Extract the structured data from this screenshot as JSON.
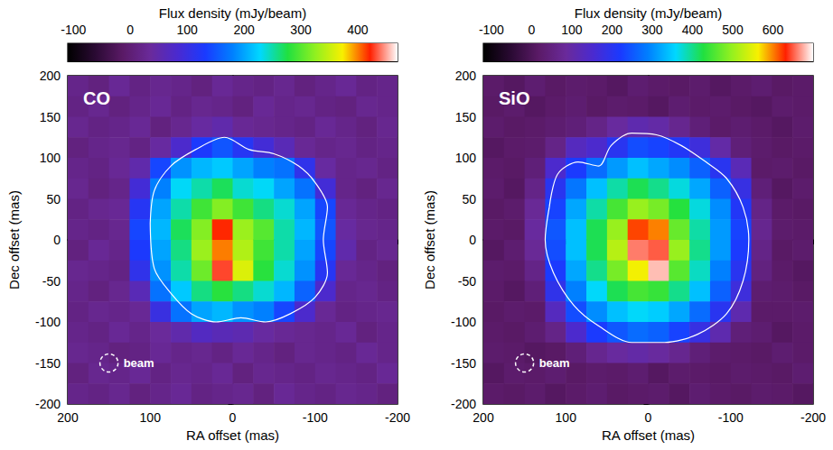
{
  "chart_data": [
    {
      "type": "heatmap",
      "title": "CO",
      "xlabel": "RA offset (mas)",
      "ylabel": "Dec offset (mas)",
      "xlim": [
        200,
        -200
      ],
      "ylim": [
        -200,
        200
      ],
      "xticks": [
        200,
        100,
        0,
        -100,
        -200
      ],
      "yticks": [
        -200,
        -150,
        -100,
        -50,
        0,
        50,
        100,
        150,
        200
      ],
      "grid": false,
      "x": [
        187.5,
        162.5,
        137.5,
        112.5,
        87.5,
        62.5,
        37.5,
        12.5,
        -12.5,
        -37.5,
        -62.5,
        -87.5,
        -112.5,
        -137.5,
        -162.5,
        -187.5
      ],
      "y": [
        187.5,
        162.5,
        137.5,
        112.5,
        87.5,
        62.5,
        37.5,
        12.5,
        -12.5,
        -37.5,
        -62.5,
        -87.5,
        -112.5,
        -137.5,
        -162.5,
        -187.5
      ],
      "values": [
        [
          20,
          10,
          30,
          15,
          25,
          20,
          10,
          30,
          20,
          15,
          25,
          10,
          20,
          30,
          15,
          20
        ],
        [
          15,
          25,
          10,
          20,
          30,
          15,
          25,
          20,
          10,
          30,
          20,
          25,
          15,
          10,
          25,
          20
        ],
        [
          25,
          15,
          20,
          30,
          10,
          25,
          40,
          50,
          30,
          25,
          20,
          15,
          30,
          20,
          10,
          25
        ],
        [
          10,
          20,
          25,
          15,
          40,
          80,
          130,
          150,
          120,
          90,
          60,
          30,
          20,
          25,
          15,
          20
        ],
        [
          20,
          15,
          30,
          50,
          140,
          190,
          210,
          220,
          200,
          180,
          170,
          110,
          40,
          20,
          25,
          15
        ],
        [
          25,
          10,
          20,
          90,
          180,
          230,
          250,
          270,
          240,
          230,
          200,
          170,
          90,
          20,
          10,
          25
        ],
        [
          15,
          25,
          30,
          120,
          200,
          250,
          290,
          320,
          290,
          260,
          240,
          200,
          140,
          30,
          20,
          15
        ],
        [
          20,
          15,
          25,
          140,
          210,
          270,
          320,
          420,
          330,
          300,
          250,
          210,
          150,
          40,
          25,
          20
        ],
        [
          10,
          30,
          20,
          130,
          200,
          260,
          330,
          400,
          340,
          290,
          250,
          200,
          140,
          50,
          15,
          25
        ],
        [
          25,
          20,
          15,
          110,
          190,
          250,
          310,
          430,
          360,
          280,
          240,
          190,
          120,
          30,
          20,
          10
        ],
        [
          20,
          10,
          25,
          60,
          170,
          220,
          260,
          280,
          260,
          240,
          210,
          160,
          80,
          20,
          25,
          15
        ],
        [
          15,
          25,
          20,
          30,
          100,
          170,
          200,
          210,
          190,
          180,
          140,
          80,
          30,
          15,
          20,
          25
        ],
        [
          20,
          15,
          30,
          20,
          35,
          50,
          70,
          60,
          55,
          40,
          30,
          25,
          20,
          30,
          10,
          20
        ],
        [
          25,
          20,
          10,
          15,
          30,
          20,
          25,
          15,
          30,
          20,
          10,
          25,
          20,
          15,
          30,
          20
        ],
        [
          10,
          25,
          20,
          30,
          15,
          25,
          20,
          30,
          10,
          25,
          20,
          15,
          25,
          20,
          15,
          30
        ],
        [
          20,
          15,
          25,
          10,
          20,
          30,
          15,
          20,
          25,
          10,
          30,
          20,
          15,
          25,
          20,
          10
        ]
      ],
      "colorbar": {
        "label": "Flux density (mJy/beam)",
        "range": [
          -110,
          470
        ],
        "ticks": [
          -100,
          0,
          100,
          200,
          300,
          400
        ]
      },
      "contour": {
        "x": [
          100,
          95,
          75,
          45,
          10,
          -20,
          -50,
          -80,
          -100,
          -115,
          -110,
          -115,
          -100,
          -70,
          -40,
          -10,
          20,
          50,
          75,
          95,
          100
        ],
        "y": [
          20,
          60,
          90,
          110,
          125,
          110,
          105,
          90,
          70,
          40,
          0,
          -40,
          -70,
          -90,
          -100,
          -95,
          -100,
          -90,
          -65,
          -35,
          20
        ]
      },
      "beam": {
        "label": "beam",
        "x": 150,
        "y": -150,
        "diameter": 22
      }
    },
    {
      "type": "heatmap",
      "title": "SiO",
      "xlabel": "RA offset (mas)",
      "ylabel": "Dec offset (mas)",
      "xlim": [
        200,
        -200
      ],
      "ylim": [
        -200,
        200
      ],
      "xticks": [
        200,
        100,
        0,
        -100,
        -200
      ],
      "yticks": [
        -200,
        -150,
        -100,
        -50,
        0,
        50,
        100,
        150,
        200
      ],
      "grid": false,
      "x": [
        187.5,
        162.5,
        137.5,
        112.5,
        87.5,
        62.5,
        37.5,
        12.5,
        -12.5,
        -37.5,
        -62.5,
        -87.5,
        -112.5,
        -137.5,
        -162.5,
        -187.5
      ],
      "y": [
        187.5,
        162.5,
        137.5,
        112.5,
        87.5,
        62.5,
        37.5,
        12.5,
        -12.5,
        -37.5,
        -62.5,
        -87.5,
        -112.5,
        -137.5,
        -162.5,
        -187.5
      ],
      "values": [
        [
          20,
          10,
          30,
          15,
          25,
          20,
          10,
          30,
          20,
          15,
          25,
          10,
          20,
          30,
          15,
          20
        ],
        [
          15,
          25,
          10,
          20,
          30,
          15,
          25,
          20,
          10,
          30,
          20,
          25,
          15,
          10,
          25,
          20
        ],
        [
          25,
          15,
          20,
          30,
          40,
          60,
          90,
          110,
          100,
          70,
          40,
          20,
          30,
          20,
          10,
          25
        ],
        [
          10,
          20,
          25,
          60,
          130,
          150,
          200,
          240,
          230,
          210,
          170,
          100,
          40,
          25,
          15,
          20
        ],
        [
          20,
          15,
          40,
          150,
          220,
          270,
          310,
          340,
          320,
          300,
          260,
          200,
          120,
          20,
          25,
          15
        ],
        [
          25,
          10,
          60,
          200,
          280,
          340,
          390,
          420,
          400,
          370,
          320,
          260,
          180,
          40,
          10,
          25
        ],
        [
          15,
          25,
          80,
          230,
          320,
          390,
          450,
          500,
          480,
          430,
          370,
          300,
          210,
          60,
          20,
          15
        ],
        [
          20,
          15,
          90,
          250,
          340,
          420,
          500,
          620,
          600,
          470,
          390,
          310,
          230,
          70,
          25,
          20
        ],
        [
          10,
          30,
          80,
          240,
          340,
          420,
          520,
          660,
          650,
          500,
          400,
          310,
          220,
          60,
          15,
          25
        ],
        [
          25,
          20,
          60,
          220,
          320,
          400,
          480,
          560,
          680,
          460,
          380,
          290,
          200,
          50,
          20,
          10
        ],
        [
          20,
          10,
          40,
          190,
          290,
          360,
          420,
          450,
          440,
          400,
          340,
          260,
          170,
          30,
          25,
          15
        ],
        [
          15,
          25,
          20,
          130,
          240,
          300,
          340,
          360,
          350,
          320,
          270,
          200,
          110,
          20,
          20,
          25
        ],
        [
          20,
          15,
          30,
          60,
          150,
          220,
          250,
          270,
          260,
          230,
          180,
          110,
          40,
          30,
          10,
          20
        ],
        [
          25,
          20,
          10,
          15,
          40,
          70,
          90,
          100,
          90,
          70,
          40,
          25,
          20,
          15,
          30,
          20
        ],
        [
          10,
          25,
          20,
          30,
          15,
          25,
          20,
          30,
          10,
          25,
          20,
          15,
          25,
          20,
          15,
          30
        ],
        [
          20,
          15,
          25,
          10,
          20,
          30,
          15,
          20,
          25,
          10,
          30,
          20,
          15,
          25,
          20,
          10
        ]
      ],
      "colorbar": {
        "label": "Flux density (mJy/beam)",
        "range": [
          -120,
          700
        ],
        "ticks": [
          -100,
          0,
          100,
          200,
          300,
          400,
          500,
          600
        ]
      },
      "contour": {
        "x": [
          120,
          110,
          85,
          60,
          45,
          20,
          -10,
          -40,
          -70,
          -95,
          -115,
          -122,
          -115,
          -95,
          -60,
          -20,
          20,
          60,
          90,
          115,
          125,
          120
        ],
        "y": [
          40,
          80,
          95,
          90,
          115,
          130,
          128,
          115,
          95,
          75,
          40,
          0,
          -50,
          -90,
          -115,
          -125,
          -125,
          -105,
          -80,
          -40,
          0,
          40
        ]
      },
      "beam": {
        "label": "beam",
        "x": 150,
        "y": -150,
        "diameter": 22
      }
    }
  ]
}
